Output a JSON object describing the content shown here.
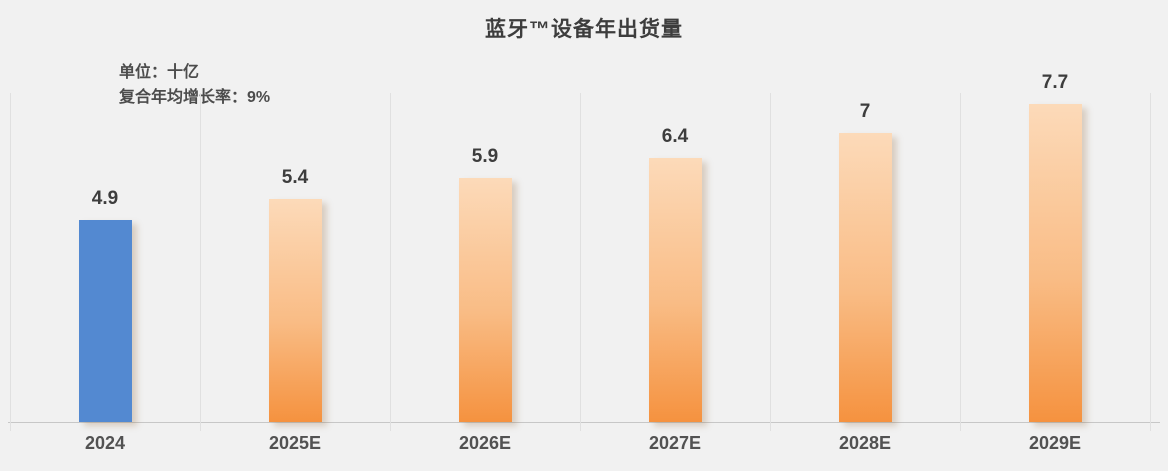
{
  "chart": {
    "title": "蓝牙™设备年出货量",
    "note_unit": "单位：十亿",
    "note_cagr": "复合年均增长率：9%"
  },
  "chart_data": {
    "type": "bar",
    "title": "蓝牙™设备年出货量",
    "annotations": [
      "单位：十亿",
      "复合年均增长率：9%"
    ],
    "unit": "十亿 (billions)",
    "cagr": "9%",
    "categories": [
      "2024",
      "2025E",
      "2026E",
      "2027E",
      "2028E",
      "2029E"
    ],
    "values": [
      4.9,
      5.4,
      5.9,
      6.4,
      7,
      7.7
    ],
    "value_labels": [
      "4.9",
      "5.4",
      "5.9",
      "6.4",
      "7",
      "7.7"
    ],
    "xlabel": "",
    "ylabel": "",
    "ylim": [
      0,
      7.7
    ],
    "grid": "vertical category separators only",
    "legend_position": "none",
    "bar_colors": [
      "#5389d1",
      "orange-gradient",
      "orange-gradient",
      "orange-gradient",
      "orange-gradient",
      "orange-gradient"
    ],
    "colors": {
      "actual_bar": "#5389d1",
      "estimate_bar_gradient_top": "#fcdab9",
      "estimate_bar_gradient_bottom": "#f5923f",
      "background": "#f1f1f1",
      "gridline": "#e0e0e0",
      "axis_line": "#c7c7c7",
      "title_text": "#3d3d3d",
      "label_text": "#525252"
    }
  }
}
